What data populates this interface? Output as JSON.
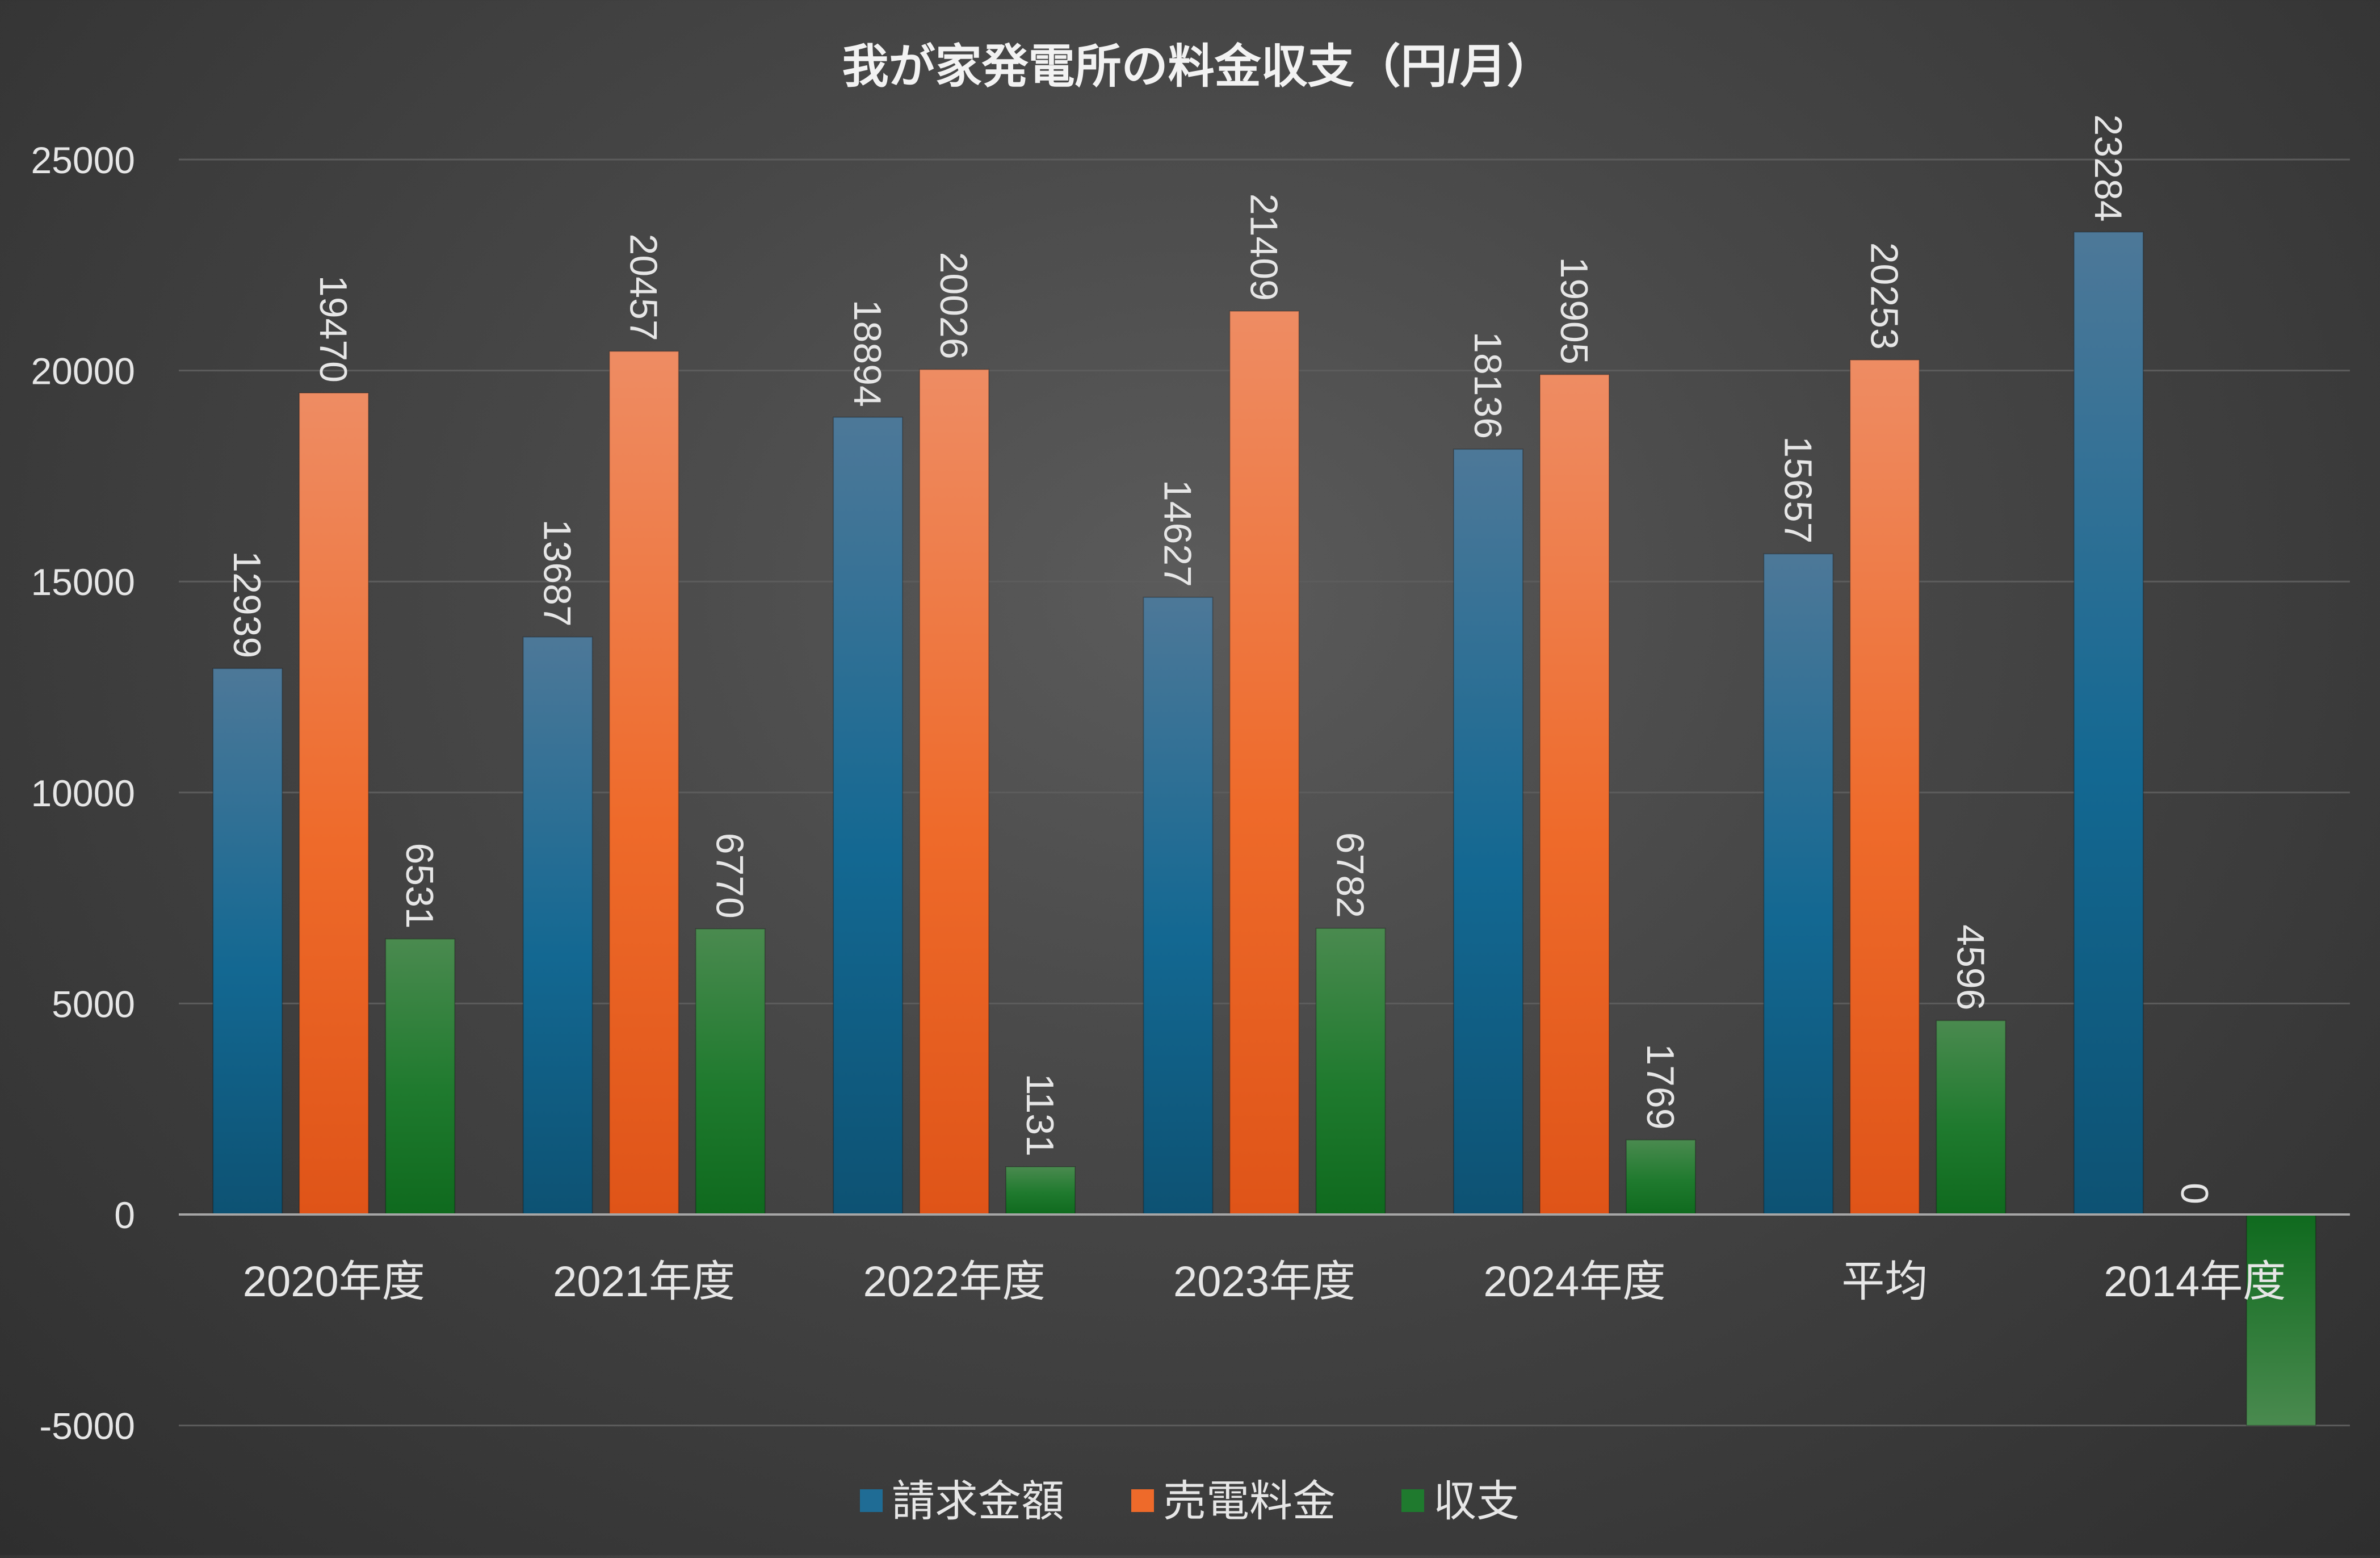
{
  "chart_data": {
    "type": "bar",
    "title": "我が家発電所の料金収支（円/月）",
    "categories": [
      "2020年度",
      "2021年度",
      "2022年度",
      "2023年度",
      "2024年度",
      "平均",
      "2014年度"
    ],
    "series": [
      {
        "name": "請求金額",
        "color": "#1f6c95",
        "values": [
          12939,
          13687,
          18894,
          14627,
          18136,
          15657,
          23284
        ]
      },
      {
        "name": "売電料金",
        "color": "#ee6a2a",
        "values": [
          19470,
          20457,
          20026,
          21409,
          19905,
          20253,
          0
        ]
      },
      {
        "name": "収支",
        "color": "#1f7a2e",
        "values": [
          6531,
          6770,
          1131,
          6782,
          1769,
          4596,
          -5000
        ]
      }
    ],
    "data_labels": [
      [
        "12939",
        "19470",
        "6531"
      ],
      [
        "13687",
        "20457",
        "6770"
      ],
      [
        "18894",
        "20026",
        "1131"
      ],
      [
        "14627",
        "21409",
        "6782"
      ],
      [
        "18136",
        "19905",
        "1769"
      ],
      [
        "15657",
        "20253",
        "4596"
      ],
      [
        "23284",
        "0",
        ""
      ]
    ],
    "ylim": [
      -5000,
      25000
    ],
    "yticks": [
      25000,
      20000,
      15000,
      10000,
      5000,
      0,
      -5000
    ],
    "grid": true,
    "legend": "bottom",
    "text_color": "#e6e6e6",
    "grid_color": "#5c5c5c",
    "axis_color": "#a6a6a6"
  }
}
